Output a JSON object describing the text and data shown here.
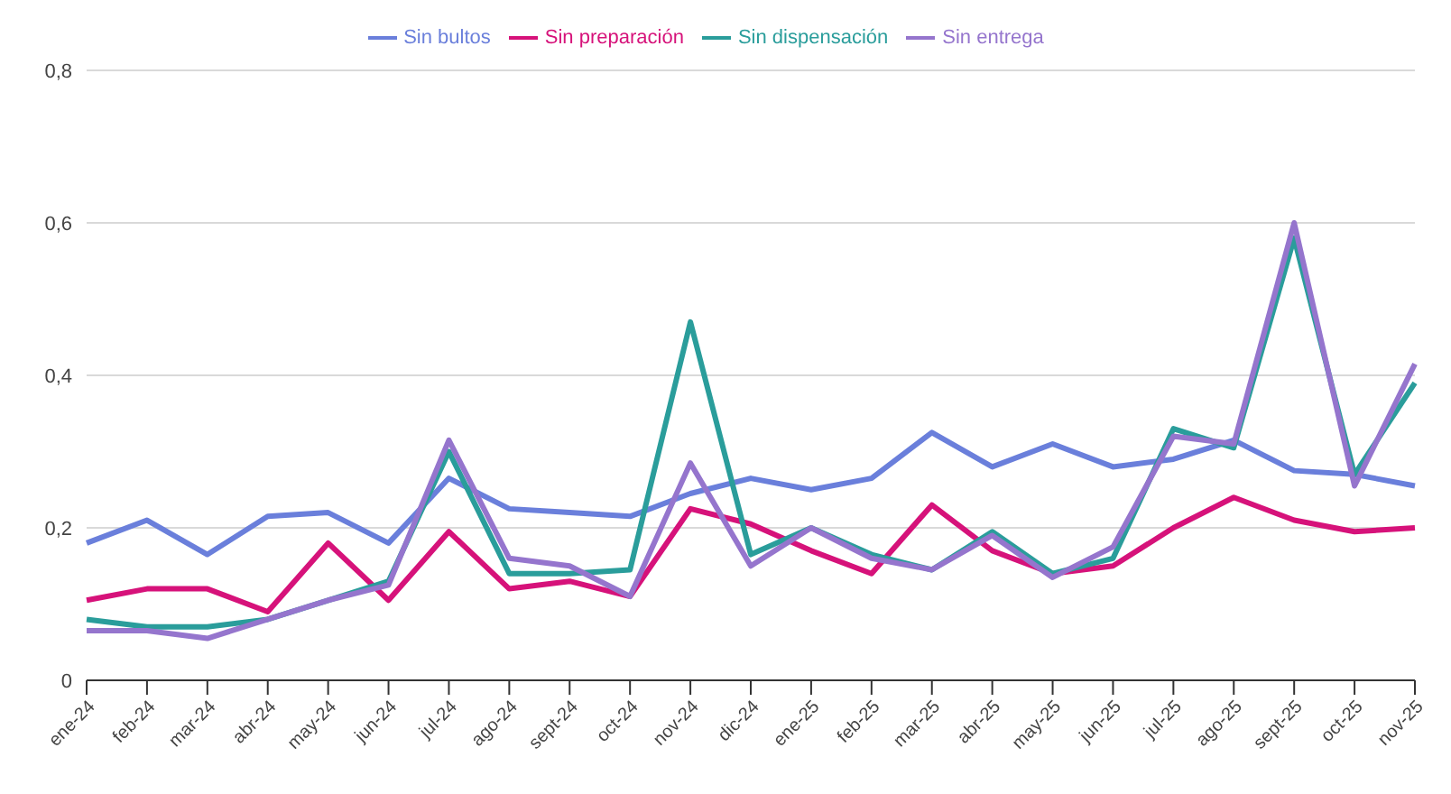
{
  "chart_data": {
    "type": "line",
    "categories": [
      "ene-24",
      "feb-24",
      "mar-24",
      "abr-24",
      "may-24",
      "jun-24",
      "jul-24",
      "ago-24",
      "sept-24",
      "oct-24",
      "nov-24",
      "dic-24",
      "ene-25",
      "feb-25",
      "mar-25",
      "abr-25",
      "may-25",
      "jun-25",
      "jul-25",
      "ago-25",
      "sept-25",
      "oct-25",
      "nov-25"
    ],
    "series": [
      {
        "name": "Sin bultos",
        "color": "#6a7fdb",
        "values": [
          0.18,
          0.21,
          0.165,
          0.215,
          0.22,
          0.18,
          0.265,
          0.225,
          0.22,
          0.215,
          0.245,
          0.265,
          0.25,
          0.265,
          0.325,
          0.28,
          0.31,
          0.28,
          0.29,
          0.315,
          0.275,
          0.27,
          0.255
        ]
      },
      {
        "name": "Sin preparación",
        "color": "#d6127a",
        "values": [
          0.105,
          0.12,
          0.12,
          0.09,
          0.18,
          0.105,
          0.195,
          0.12,
          0.13,
          0.11,
          0.225,
          0.205,
          0.17,
          0.14,
          0.23,
          0.17,
          0.14,
          0.15,
          0.2,
          0.24,
          0.21,
          0.195,
          0.2
        ]
      },
      {
        "name": "Sin dispensación",
        "color": "#2a9d9b",
        "values": [
          0.08,
          0.07,
          0.07,
          0.08,
          0.105,
          0.13,
          0.3,
          0.14,
          0.14,
          0.145,
          0.47,
          0.165,
          0.2,
          0.165,
          0.145,
          0.195,
          0.14,
          0.16,
          0.33,
          0.305,
          0.58,
          0.27,
          0.39
        ]
      },
      {
        "name": "Sin entrega",
        "color": "#9575cd",
        "values": [
          0.065,
          0.065,
          0.055,
          0.08,
          0.105,
          0.125,
          0.315,
          0.16,
          0.15,
          0.11,
          0.285,
          0.15,
          0.2,
          0.16,
          0.145,
          0.19,
          0.135,
          0.175,
          0.32,
          0.31,
          0.6,
          0.255,
          0.415
        ]
      }
    ],
    "ylim": [
      0,
      0.8
    ],
    "yticks": [
      {
        "value": 0,
        "label": "0"
      },
      {
        "value": 0.2,
        "label": "0,2"
      },
      {
        "value": 0.4,
        "label": "0,4"
      },
      {
        "value": 0.6,
        "label": "0,6"
      },
      {
        "value": 0.8,
        "label": "0,8"
      }
    ],
    "grid": "y",
    "legend": "top",
    "marker": "none",
    "line_style": "solid"
  }
}
